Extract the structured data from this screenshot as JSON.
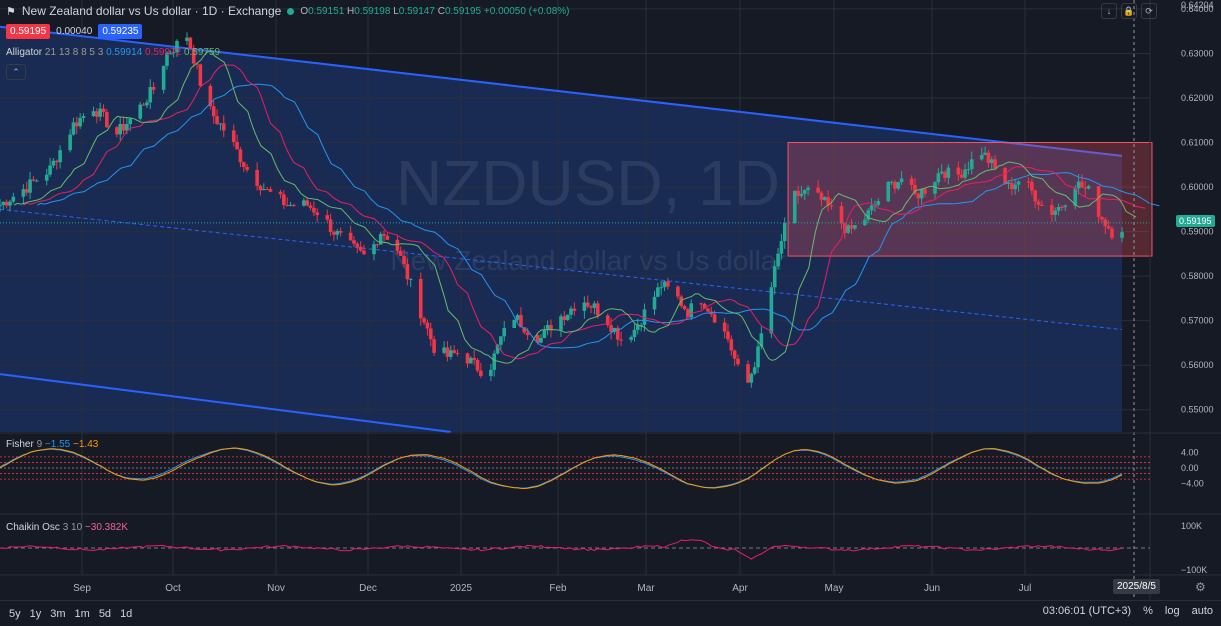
{
  "header": {
    "title": "New Zealand dollar vs Us dollar · 1D · Exchange",
    "open_label": "O",
    "open": "0.59151",
    "high_label": "H",
    "high": "0.59198",
    "low_label": "L",
    "low": "0.59147",
    "close_label": "C",
    "close": "0.59195",
    "change": "+0.00050 (+0.08%)"
  },
  "quote": {
    "sell": "0.59195",
    "spread": "0.00040",
    "buy": "0.59235"
  },
  "alligator": {
    "label": "Alligator",
    "params": "21 13 8 8 5 3",
    "jaw": "0.59914",
    "teeth": "0.59972",
    "lips": "0.59759"
  },
  "fisher": {
    "label": "Fisher",
    "params": "9",
    "v1": "−1.55",
    "v2": "−1.43"
  },
  "chaikin": {
    "label": "Chaikin Osc",
    "params": "3 10",
    "value": "−30.382K"
  },
  "watermark": {
    "symbol": "NZDUSD, 1D",
    "name": "New Zealand dollar vs Us dollar"
  },
  "bottom": {
    "timeframes": [
      "5y",
      "1y",
      "3m",
      "1m",
      "5d",
      "1d"
    ],
    "clock": "03:06:01 (UTC+3)",
    "percent": "%",
    "log": "log",
    "auto": "auto"
  },
  "date_badge": "2025/8/5",
  "price_tag": "0.59195",
  "colors": {
    "up": "#22ab94",
    "down": "#f23645",
    "channel": "#2962ff",
    "rect": "#f7525f",
    "jaw": "#2196f3",
    "teeth": "#e91e63",
    "lips": "#66bb6a"
  },
  "chart_data": {
    "type": "candlestick",
    "title": "NZDUSD, 1D",
    "y_ticks": [
      "0.64204",
      "0.64000",
      "0.63000",
      "0.62000",
      "0.61000",
      "0.60000",
      "0.59000",
      "0.58000",
      "0.57000",
      "0.56000",
      "0.55000"
    ],
    "x_ticks": [
      "Sep",
      "Oct",
      "Nov",
      "Dec",
      "2025",
      "Feb",
      "Mar",
      "Apr",
      "May",
      "Jun",
      "Jul",
      "2025/8/5"
    ],
    "fisher_ticks": [
      "4.00",
      "0.00",
      "−4.00"
    ],
    "chaikin_ticks": [
      "100K",
      "−100K"
    ],
    "ylim": [
      0.545,
      0.642
    ],
    "close_path": [
      [
        0,
        0.596
      ],
      [
        8,
        0.6
      ],
      [
        15,
        0.604
      ],
      [
        22,
        0.614
      ],
      [
        28,
        0.618
      ],
      [
        35,
        0.612
      ],
      [
        40,
        0.616
      ],
      [
        46,
        0.622
      ],
      [
        50,
        0.63
      ],
      [
        56,
        0.634
      ],
      [
        58,
        0.629
      ],
      [
        62,
        0.618
      ],
      [
        68,
        0.612
      ],
      [
        74,
        0.604
      ],
      [
        80,
        0.599
      ],
      [
        86,
        0.596
      ],
      [
        92,
        0.596
      ],
      [
        96,
        0.594
      ],
      [
        100,
        0.59
      ],
      [
        106,
        0.586
      ],
      [
        110,
        0.584
      ],
      [
        114,
        0.59
      ],
      [
        118,
        0.588
      ],
      [
        122,
        0.58
      ],
      [
        126,
        0.572
      ],
      [
        130,
        0.564
      ],
      [
        134,
        0.562
      ],
      [
        138,
        0.563
      ],
      [
        142,
        0.56
      ],
      [
        146,
        0.558
      ],
      [
        150,
        0.566
      ],
      [
        154,
        0.571
      ],
      [
        158,
        0.568
      ],
      [
        162,
        0.566
      ],
      [
        166,
        0.57
      ],
      [
        170,
        0.572
      ],
      [
        174,
        0.575
      ],
      [
        178,
        0.573
      ],
      [
        182,
        0.57
      ],
      [
        186,
        0.566
      ],
      [
        190,
        0.568
      ],
      [
        194,
        0.573
      ],
      [
        198,
        0.578
      ],
      [
        202,
        0.576
      ],
      [
        206,
        0.572
      ],
      [
        210,
        0.575
      ],
      [
        214,
        0.571
      ],
      [
        218,
        0.566
      ],
      [
        221,
        0.559
      ],
      [
        224,
        0.556
      ],
      [
        227,
        0.563
      ],
      [
        230,
        0.574
      ],
      [
        234,
        0.588
      ],
      [
        238,
        0.598
      ],
      [
        242,
        0.599
      ],
      [
        246,
        0.597
      ],
      [
        250,
        0.594
      ],
      [
        254,
        0.59
      ],
      [
        258,
        0.592
      ],
      [
        262,
        0.596
      ],
      [
        266,
        0.6
      ],
      [
        270,
        0.602
      ],
      [
        274,
        0.598
      ],
      [
        278,
        0.6
      ],
      [
        282,
        0.604
      ],
      [
        286,
        0.602
      ],
      [
        290,
        0.605
      ],
      [
        294,
        0.608
      ],
      [
        298,
        0.604
      ],
      [
        302,
        0.6
      ],
      [
        306,
        0.602
      ],
      [
        310,
        0.598
      ],
      [
        314,
        0.594
      ],
      [
        318,
        0.596
      ],
      [
        322,
        0.601
      ],
      [
        326,
        0.599
      ],
      [
        330,
        0.593
      ],
      [
        334,
        0.589
      ],
      [
        336,
        0.591
      ]
    ],
    "n_days": 337,
    "channel_upper": [
      [
        0,
        0.636
      ],
      [
        336,
        0.607
      ]
    ],
    "channel_lower": [
      [
        0,
        0.558
      ],
      [
        135,
        0.545
      ]
    ],
    "channel_mid": [
      [
        0,
        0.595
      ],
      [
        336,
        0.568
      ]
    ],
    "range_box": {
      "start_day": 236,
      "end_day": 336,
      "top": 0.61,
      "bottom": 0.5845
    }
  }
}
